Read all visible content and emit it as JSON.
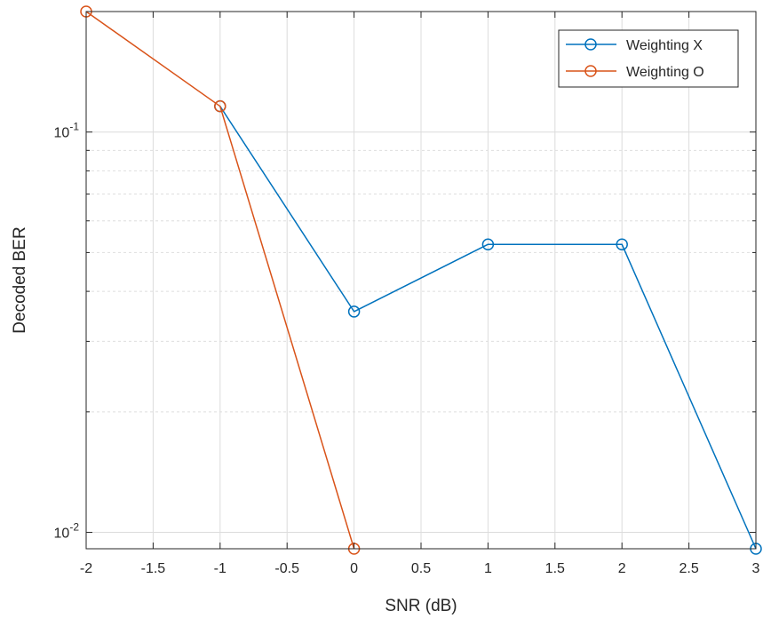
{
  "chart_data": {
    "type": "line",
    "xlabel": "SNR (dB)",
    "ylabel": "Decoded BER",
    "xlim": [
      -2,
      3
    ],
    "ylim": [
      0.0091,
      0.2
    ],
    "yscale": "log",
    "grid": true,
    "legend_position": "top-right",
    "x_ticks": [
      -2,
      -1.5,
      -1,
      -0.5,
      0,
      0.5,
      1,
      1.5,
      2,
      2.5,
      3
    ],
    "x_tick_labels": [
      "-2",
      "-1.5",
      "-1",
      "-0.5",
      "0",
      "0.5",
      "1",
      "1.5",
      "2",
      "2.5",
      "3"
    ],
    "y_ticks": [
      0.01,
      0.1
    ],
    "y_tick_labels": [
      {
        "base": "10",
        "exp": "-2"
      },
      {
        "base": "10",
        "exp": "-1"
      }
    ],
    "series": [
      {
        "name": "Weighting X",
        "color": "#0072BD",
        "marker": "circle",
        "x": [
          -1,
          0,
          1,
          2,
          3
        ],
        "y": [
          0.116,
          0.0356,
          0.0524,
          0.0524,
          0.0091
        ]
      },
      {
        "name": "Weighting O",
        "color": "#D95319",
        "marker": "circle",
        "x": [
          -2,
          -1,
          0
        ],
        "y": [
          0.2,
          0.116,
          0.0091
        ]
      }
    ]
  }
}
